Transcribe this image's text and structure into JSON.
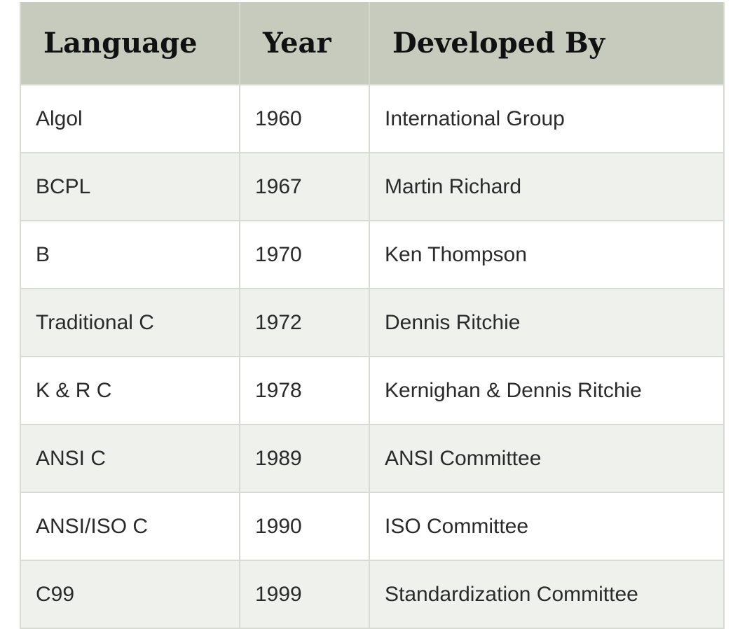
{
  "table": {
    "headers": [
      "Language",
      "Year",
      "Developed By"
    ],
    "rows": [
      [
        "Algol",
        "1960",
        "International Group"
      ],
      [
        "BCPL",
        "1967",
        "Martin Richard"
      ],
      [
        "B",
        "1970",
        "Ken Thompson"
      ],
      [
        "Traditional C",
        "1972",
        "Dennis Ritchie"
      ],
      [
        "K & R C",
        "1978",
        "Kernighan & Dennis Ritchie"
      ],
      [
        "ANSI C",
        "1989",
        "ANSI Committee"
      ],
      [
        "ANSI/ISO C",
        "1990",
        "ISO Committee"
      ],
      [
        "C99",
        "1999",
        "Standardization Committee"
      ]
    ]
  },
  "colors": {
    "header_bg": "#c7cbbe",
    "row_alt_bg": "#eff1ec",
    "row_bg": "#ffffff"
  }
}
